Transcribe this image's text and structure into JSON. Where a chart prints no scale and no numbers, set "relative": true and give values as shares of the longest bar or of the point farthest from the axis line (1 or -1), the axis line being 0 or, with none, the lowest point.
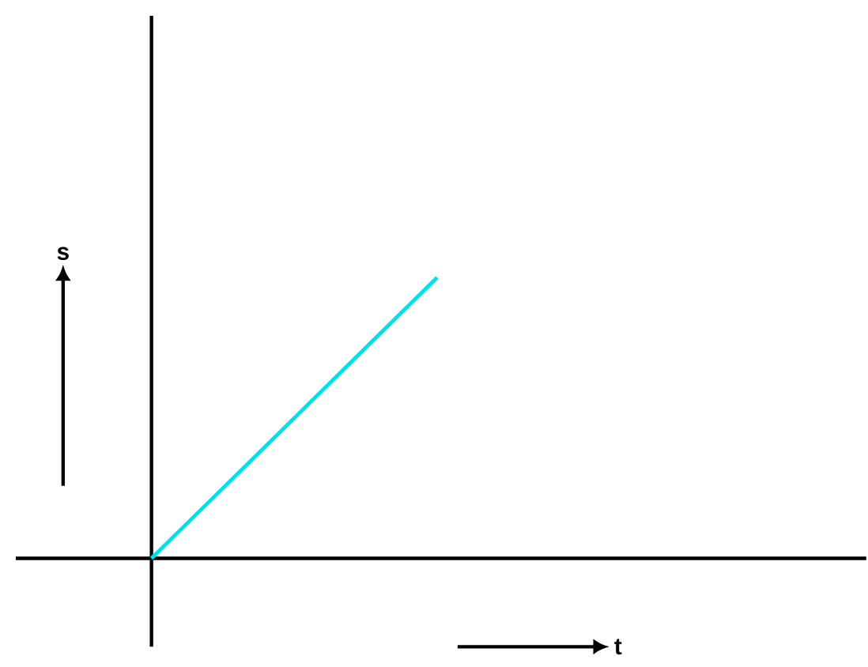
{
  "chart_data": {
    "type": "line",
    "relative": true,
    "categories": [
      null,
      null
    ],
    "xlabel": "t",
    "ylabel": "s",
    "series": [
      {
        "color": "#00e0ea",
        "values": [
          0,
          1
        ]
      }
    ]
  }
}
